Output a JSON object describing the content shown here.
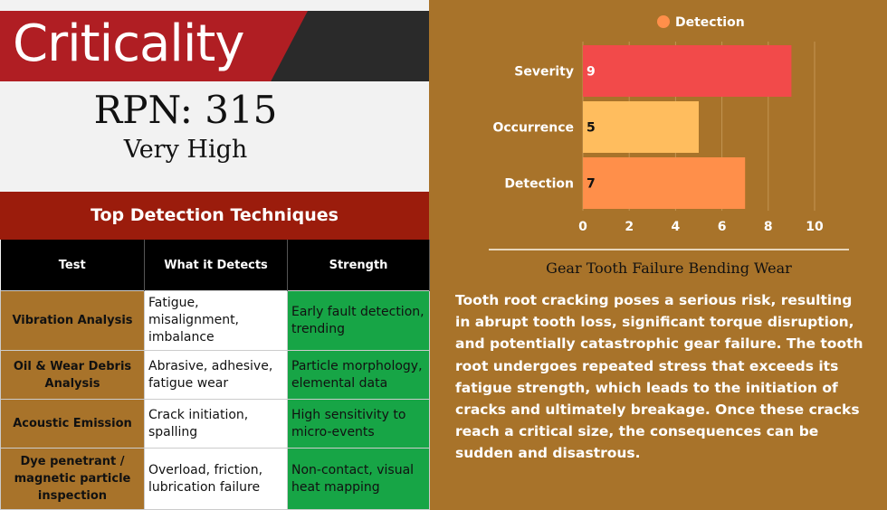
{
  "banner": {
    "title": "Criticality"
  },
  "rpn": {
    "label": "RPN: 315",
    "level": "Very High"
  },
  "techniques": {
    "header": "Top Detection Techniques",
    "columns": [
      "Test",
      "What it Detects",
      "Strength"
    ],
    "rows": [
      {
        "test": "Vibration Analysis",
        "detects": "Fatigue, misalignment, imbalance",
        "strength": "Early fault detection, trending"
      },
      {
        "test": "Oil & Wear Debris Analysis",
        "detects": "Abrasive, adhesive, fatigue wear",
        "strength": "Particle morphology, elemental data"
      },
      {
        "test": "Acoustic Emission",
        "detects": "Crack initiation, spalling",
        "strength": "High sensitivity to micro-events"
      },
      {
        "test": "Dye penetrant / magnetic particle inspection",
        "detects": "Overload, friction, lubrication failure",
        "strength": "Non-contact, visual heat mapping"
      }
    ]
  },
  "chart_data": {
    "type": "bar",
    "orientation": "horizontal",
    "categories": [
      "Severity",
      "Occurrence",
      "Detection"
    ],
    "values": [
      9,
      5,
      7
    ],
    "bar_colors": [
      "#f24a4a",
      "#ffbd5e",
      "#ff8f4a"
    ],
    "series": [
      {
        "name": "Detection",
        "values": [
          9,
          5,
          7
        ]
      }
    ],
    "legend_color": "#ff8f4a",
    "legend": "top",
    "xlim": [
      0,
      10
    ],
    "xticks": [
      0,
      2,
      4,
      6,
      8,
      10
    ],
    "grid": true
  },
  "description": {
    "title": "Gear Tooth Failure Bending Wear",
    "body": "Tooth root cracking poses a serious risk, resulting in abrupt tooth loss, significant torque disruption, and potentially catastrophic gear failure. The tooth root undergoes repeated stress that exceeds its fatigue strength, which leads to the initiation of cracks and ultimately breakage. Once these cracks reach a critical size, the consequences can be sudden and disastrous."
  },
  "colors": {
    "background": "#a8732a",
    "banner_red": "#b01e23",
    "header_red": "#9b1c0c",
    "strength_green": "#17a546"
  }
}
